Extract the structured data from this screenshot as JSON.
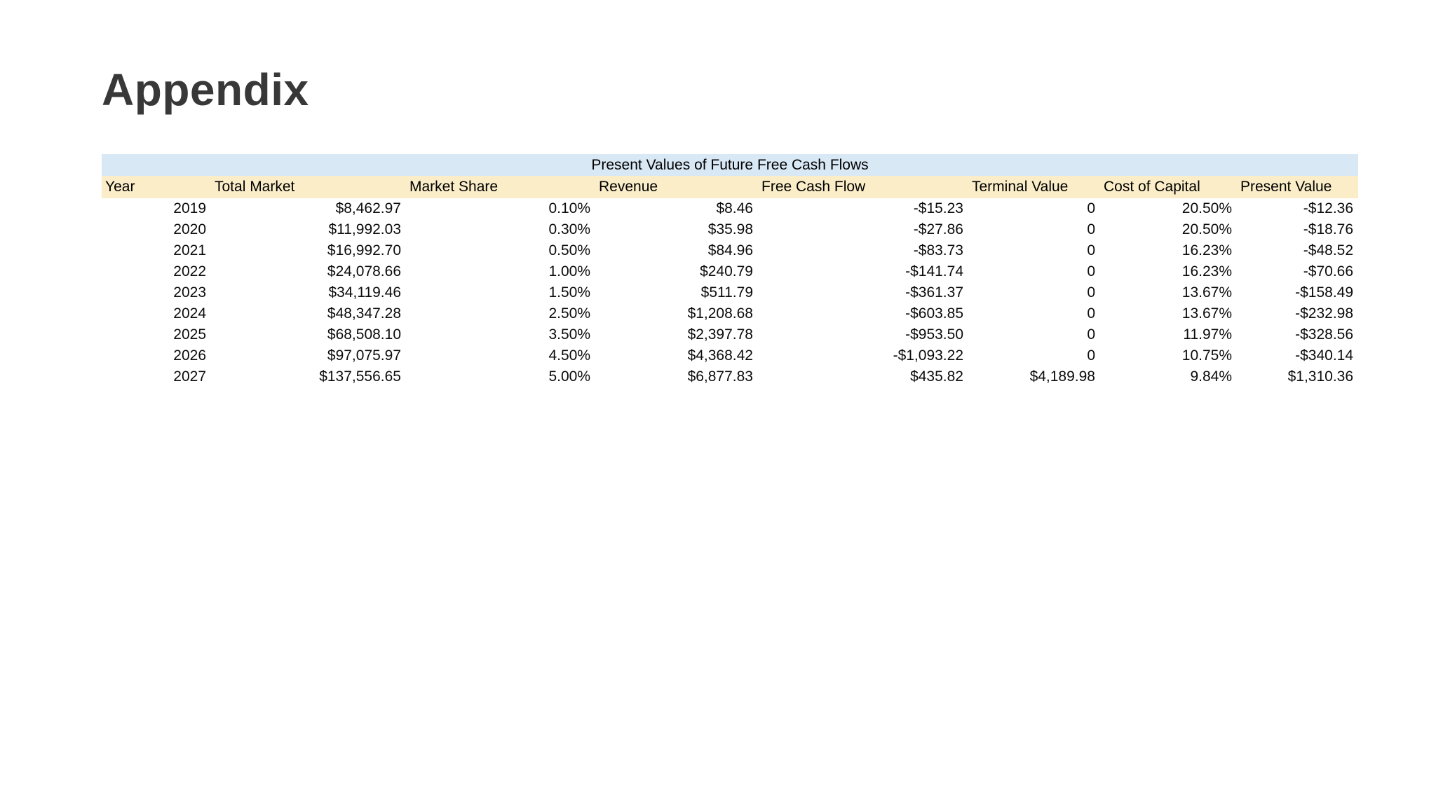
{
  "page": {
    "title": "Appendix"
  },
  "table": {
    "title": "Present Values of Future Free Cash Flows",
    "title_band_color": "#d9e8f5",
    "header_band_color": "#faedc8",
    "columns": [
      "Year",
      "Total Market",
      "Market Share",
      "Revenue",
      "Free Cash Flow",
      "Terminal Value",
      "Cost of Capital",
      "Present Value"
    ],
    "rows": [
      [
        "2019",
        "$8,462.97",
        "0.10%",
        "$8.46",
        "-$15.23",
        "0",
        "20.50%",
        "-$12.36"
      ],
      [
        "2020",
        "$11,992.03",
        "0.30%",
        "$35.98",
        "-$27.86",
        "0",
        "20.50%",
        "-$18.76"
      ],
      [
        "2021",
        "$16,992.70",
        "0.50%",
        "$84.96",
        "-$83.73",
        "0",
        "16.23%",
        "-$48.52"
      ],
      [
        "2022",
        "$24,078.66",
        "1.00%",
        "$240.79",
        "-$141.74",
        "0",
        "16.23%",
        "-$70.66"
      ],
      [
        "2023",
        "$34,119.46",
        "1.50%",
        "$511.79",
        "-$361.37",
        "0",
        "13.67%",
        "-$158.49"
      ],
      [
        "2024",
        "$48,347.28",
        "2.50%",
        "$1,208.68",
        "-$603.85",
        "0",
        "13.67%",
        "-$232.98"
      ],
      [
        "2025",
        "$68,508.10",
        "3.50%",
        "$2,397.78",
        "-$953.50",
        "0",
        "11.97%",
        "-$328.56"
      ],
      [
        "2026",
        "$97,075.97",
        "4.50%",
        "$4,368.42",
        "-$1,093.22",
        "0",
        "10.75%",
        "-$340.14"
      ],
      [
        "2027",
        "$137,556.65",
        "5.00%",
        "$6,877.83",
        "$435.82",
        "$4,189.98",
        "9.84%",
        "$1,310.36"
      ]
    ]
  }
}
